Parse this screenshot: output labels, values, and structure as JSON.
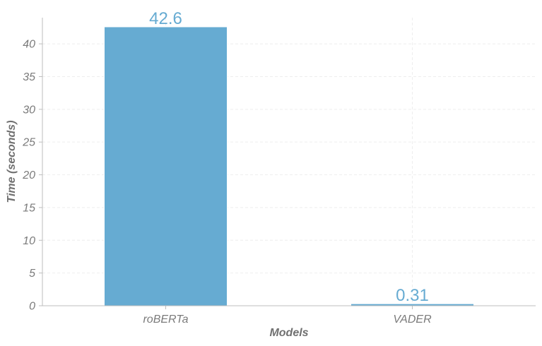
{
  "chart_data": {
    "type": "bar",
    "title": "",
    "xlabel": "Models",
    "ylabel": "Time (seconds)",
    "categories": [
      "roBERTa",
      "VADER"
    ],
    "values": [
      42.6,
      0.31
    ],
    "data_labels": [
      "42.6",
      "0.31"
    ],
    "ylim": [
      0,
      44
    ],
    "yticks": [
      0,
      5,
      10,
      15,
      20,
      25,
      30,
      35,
      40
    ],
    "grid": true,
    "legend": "none",
    "colors": {
      "bar": "#66abd2",
      "bar_edge": "#ffffff",
      "data_label": "#66abd2",
      "axis_line": "#bdbdbd",
      "grid": "#eeeeee",
      "tick_label": "#7a7a7a",
      "axis_title": "#707070"
    }
  }
}
